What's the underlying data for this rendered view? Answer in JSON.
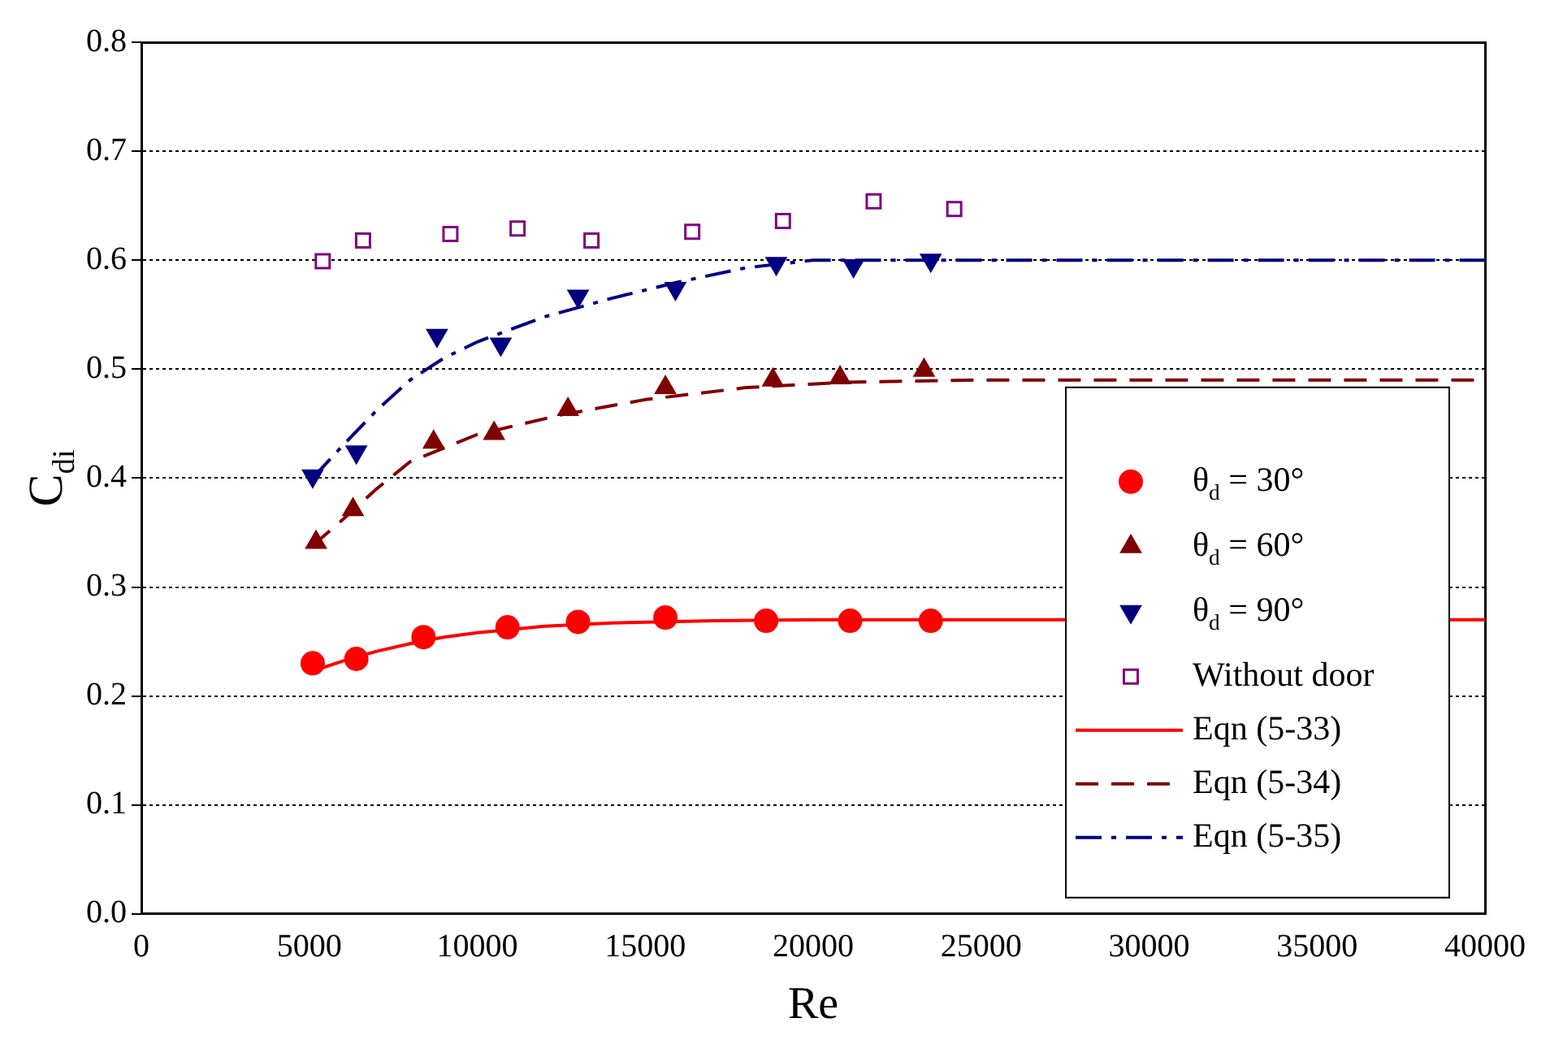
{
  "chart_data": {
    "type": "scatter",
    "xlabel": "Re",
    "ylabel": "C$_{di}$",
    "xlim": [
      0,
      40000
    ],
    "ylim": [
      0,
      0.8
    ],
    "xticks": [
      0,
      5000,
      10000,
      15000,
      20000,
      25000,
      30000,
      35000,
      40000
    ],
    "yticks": [
      {
        "value": 0,
        "label": "0.0"
      },
      0.1,
      0.2,
      0.3,
      0.4,
      0.5,
      0.6,
      0.7,
      0.8
    ],
    "grid": "y",
    "legend": "right",
    "series": [
      {
        "name": "θ$_{d}$ = 30°",
        "marker": "circle",
        "color": "#ff0000",
        "x": [
          5100,
          6400,
          8400,
          10900,
          13000,
          15600,
          18600,
          21100,
          23500
        ],
        "values": [
          0.23,
          0.234,
          0.254,
          0.263,
          0.268,
          0.272,
          0.269,
          0.269,
          0.269
        ]
      },
      {
        "name": "θ$_{d}$ = 60°",
        "marker": "triangle",
        "color": "#800000",
        "x": [
          5200,
          6300,
          8700,
          10500,
          12700,
          15600,
          18800,
          20800,
          23300
        ],
        "values": [
          0.341,
          0.371,
          0.433,
          0.441,
          0.463,
          0.483,
          0.49,
          0.492,
          0.499
        ]
      },
      {
        "name": "θ$_{d}$ = 90°",
        "marker": "triangle-down",
        "color": "#000080",
        "x": [
          5100,
          6400,
          8800,
          10700,
          13000,
          15900,
          18900,
          21200,
          23500
        ],
        "values": [
          0.402,
          0.424,
          0.531,
          0.523,
          0.567,
          0.574,
          0.597,
          0.595,
          0.6
        ]
      },
      {
        "name": "Without door",
        "marker": "square",
        "color": "#800080",
        "x": [
          5400,
          6600,
          9200,
          11200,
          13400,
          16400,
          19100,
          21800,
          24200
        ],
        "values": [
          0.599,
          0.618,
          0.624,
          0.629,
          0.618,
          0.626,
          0.636,
          0.654,
          0.647
        ]
      },
      {
        "name": "Eqn (5-33)",
        "type": "line",
        "marker": "none",
        "line_style": "solid",
        "color": "#ff0000",
        "x": [
          5100,
          6000,
          7000,
          8000,
          9000,
          10000,
          12000,
          14000,
          17000,
          20000,
          40000
        ],
        "values": [
          0.223,
          0.232,
          0.241,
          0.248,
          0.254,
          0.258,
          0.264,
          0.267,
          0.269,
          0.27,
          0.27
        ]
      },
      {
        "name": "Eqn (5-34)",
        "type": "line",
        "marker": "none",
        "line_style": "dashed",
        "color": "#800000",
        "x": [
          5100,
          6000,
          7000,
          8000,
          10000,
          12500,
          15000,
          18000,
          21000,
          25000,
          40000
        ],
        "values": [
          0.338,
          0.362,
          0.39,
          0.415,
          0.44,
          0.458,
          0.472,
          0.483,
          0.488,
          0.49,
          0.49
        ]
      },
      {
        "name": "Eqn (5-35)",
        "type": "line",
        "marker": "none",
        "line_style": "dashdot",
        "color": "#000080",
        "x": [
          5100,
          6000,
          7000,
          8000,
          9000,
          10000,
          12000,
          14000,
          16000,
          18000,
          20000,
          40000
        ],
        "values": [
          0.4,
          0.43,
          0.462,
          0.49,
          0.51,
          0.525,
          0.548,
          0.565,
          0.58,
          0.593,
          0.6,
          0.6
        ]
      }
    ]
  }
}
